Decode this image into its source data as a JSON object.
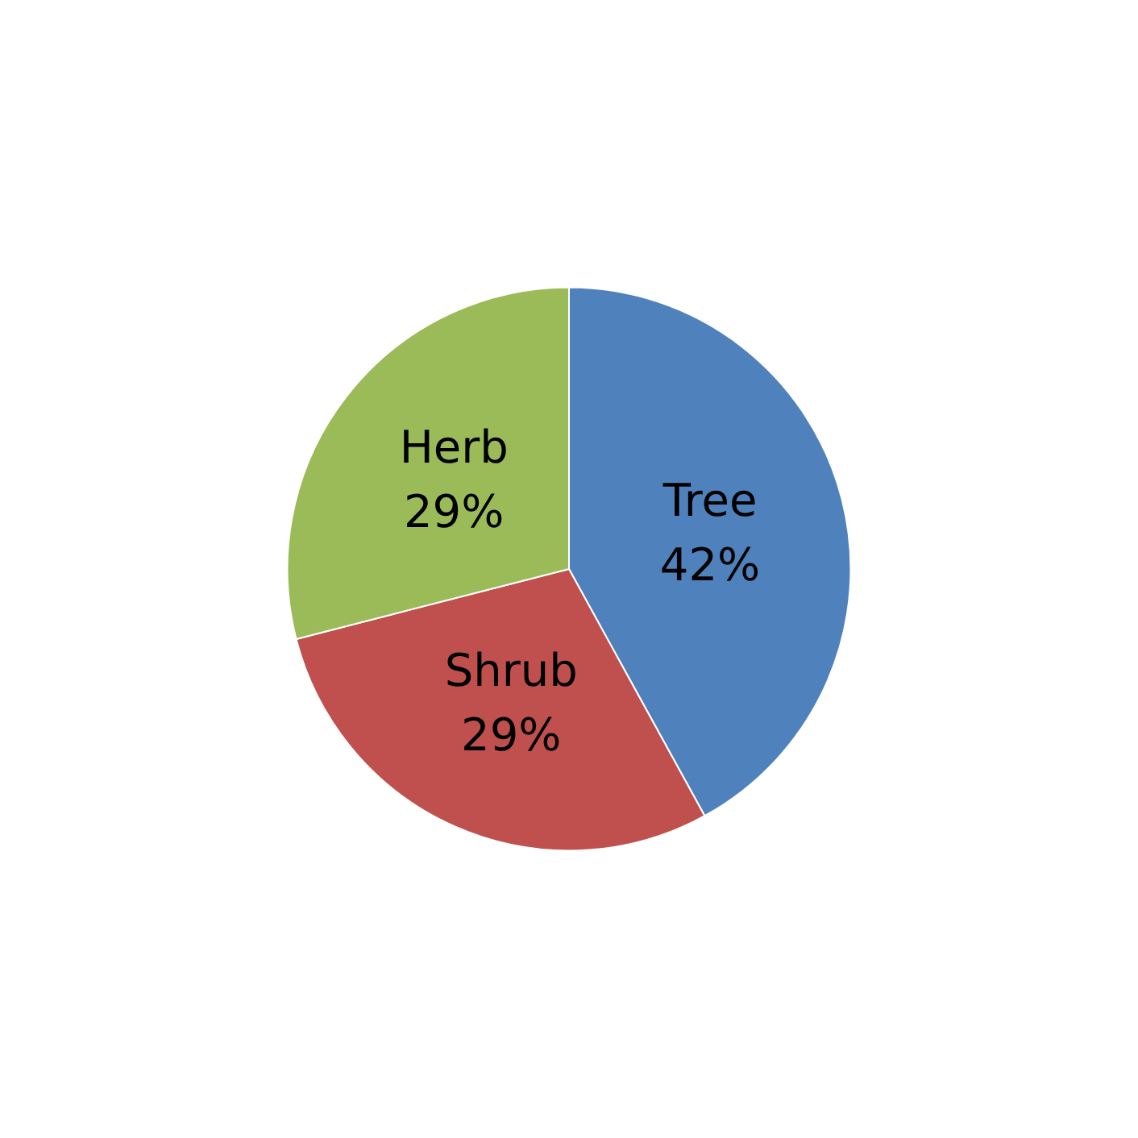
{
  "chart_data": {
    "type": "pie",
    "categories": [
      "Tree",
      "Shrub",
      "Herb"
    ],
    "values": [
      42,
      29,
      29
    ],
    "value_labels": [
      "42%",
      "29%",
      "29%"
    ],
    "colors": [
      "#4f81bd",
      "#c0504d",
      "#9bbb59"
    ],
    "legend": false
  }
}
